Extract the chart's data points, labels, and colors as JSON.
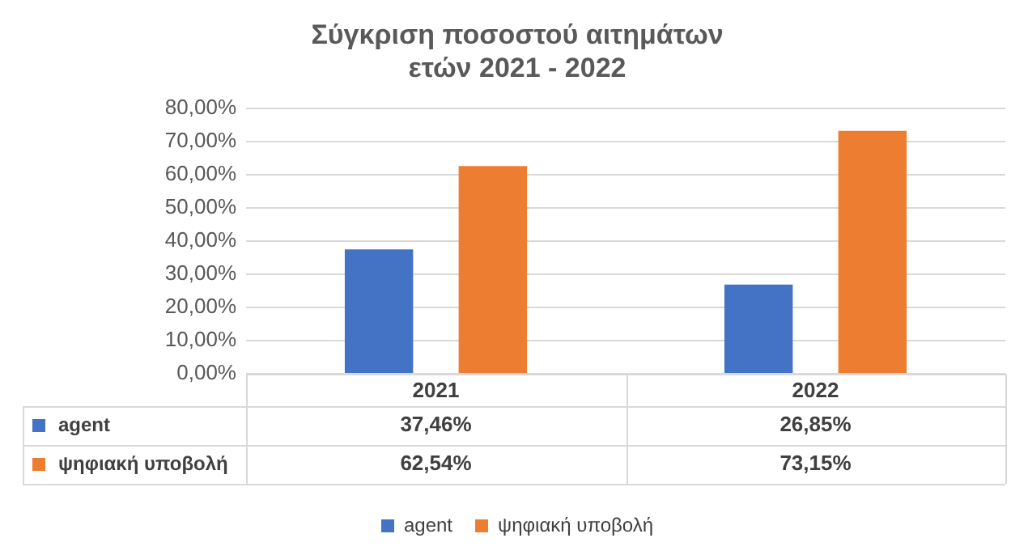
{
  "chart_data": {
    "type": "bar",
    "title": "Σύγκριση ποσοστού αιτημάτων\nετών 2021 - 2022",
    "categories": [
      "2021",
      "2022"
    ],
    "series": [
      {
        "name": "agent",
        "color": "#4472c4",
        "values": [
          37.46,
          26.85
        ],
        "value_labels": [
          "37,46%",
          "26,85%"
        ]
      },
      {
        "name": "ψηφιακή υποβολή",
        "color": "#ed7d31",
        "values": [
          62.54,
          73.15
        ],
        "value_labels": [
          "62,54%",
          "73,15%"
        ]
      }
    ],
    "ylim": [
      0,
      80
    ],
    "yticks": [
      {
        "value": 0,
        "label": "0,00%"
      },
      {
        "value": 10,
        "label": "10,00%"
      },
      {
        "value": 20,
        "label": "20,00%"
      },
      {
        "value": 30,
        "label": "30,00%"
      },
      {
        "value": 40,
        "label": "40,00%"
      },
      {
        "value": 50,
        "label": "50,00%"
      },
      {
        "value": 60,
        "label": "60,00%"
      },
      {
        "value": 70,
        "label": "70,00%"
      },
      {
        "value": 80,
        "label": "80,00%"
      }
    ],
    "grid": "y",
    "legend": "bottom"
  }
}
